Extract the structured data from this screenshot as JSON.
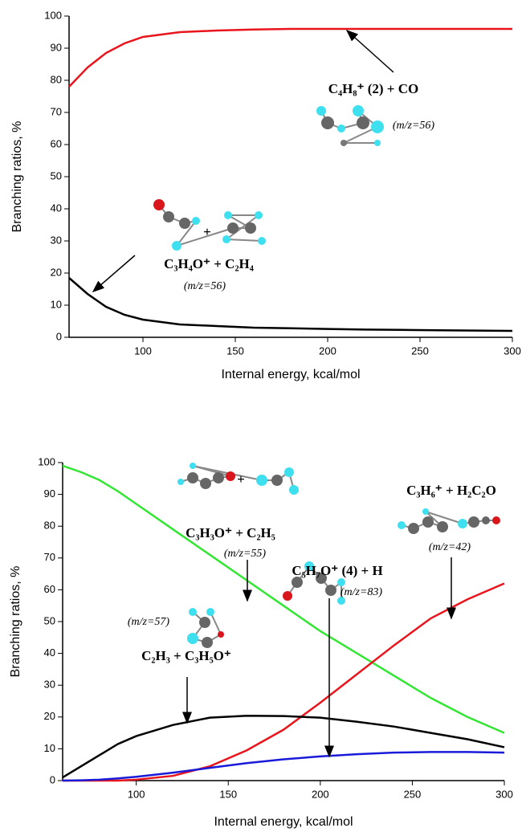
{
  "chart_data": [
    {
      "type": "line",
      "xlabel": "Internal energy, kcal/mol",
      "ylabel": "Branching ratios, %",
      "x": [
        60,
        70,
        80,
        90,
        100,
        120,
        140,
        160,
        180,
        200,
        220,
        240,
        260,
        280,
        300
      ],
      "series": [
        {
          "color": "#e8151c",
          "values": [
            78,
            84,
            88.5,
            91.5,
            93.5,
            95,
            95.5,
            95.8,
            96,
            96,
            96,
            96,
            96,
            96,
            96
          ]
        },
        {
          "color": "#000000",
          "values": [
            18.5,
            13.5,
            9.5,
            7,
            5.5,
            4,
            3.5,
            3,
            2.8,
            2.6,
            2.4,
            2.3,
            2.2,
            2.1,
            2
          ]
        }
      ],
      "xlim": [
        60,
        300
      ],
      "ylim": [
        0,
        100
      ],
      "xticks": [
        100,
        150,
        200,
        250,
        300
      ],
      "yticks": [
        0,
        10,
        20,
        30,
        40,
        50,
        60,
        70,
        80,
        90,
        100
      ],
      "annotations": [
        "C₄H₈⁺ (2) + CO",
        "(m/z=56)",
        "+",
        "C₃H₄O⁺ + C₂H₄",
        "(m/z=56)"
      ]
    },
    {
      "type": "line",
      "xlabel": "Internal energy, kcal/mol",
      "ylabel": "Branching ratios, %",
      "x": [
        60,
        70,
        80,
        90,
        100,
        120,
        140,
        160,
        180,
        200,
        220,
        240,
        260,
        280,
        300
      ],
      "series": [
        {
          "color": "#33e633",
          "values": [
            99,
            97,
            94.5,
            91,
            87,
            79,
            71,
            63,
            55,
            47,
            40,
            33,
            26,
            20,
            15
          ]
        },
        {
          "color": "#e8151c",
          "values": [
            0,
            0,
            0,
            0,
            0.3,
            1.5,
            4.5,
            9.5,
            16,
            24.5,
            33.5,
            42.5,
            51,
            57,
            62
          ]
        },
        {
          "color": "#000000",
          "values": [
            1,
            4.5,
            8,
            11.5,
            14,
            17.5,
            19.8,
            20.4,
            20.3,
            19.8,
            18.5,
            17,
            15,
            13,
            10.5
          ]
        },
        {
          "color": "#1a1ad9",
          "values": [
            0,
            0.1,
            0.3,
            0.7,
            1.2,
            2.5,
            4,
            5.5,
            6.7,
            7.6,
            8.3,
            8.8,
            9,
            9,
            8.8
          ]
        }
      ],
      "xlim": [
        60,
        300
      ],
      "ylim": [
        0,
        100
      ],
      "xticks": [
        100,
        150,
        200,
        250,
        300
      ],
      "yticks": [
        0,
        10,
        20,
        30,
        40,
        50,
        60,
        70,
        80,
        90,
        100
      ],
      "annotations": [
        "C₃H₃O⁺ + C₂H₅",
        "(m/z=55)",
        "+",
        "C₃H₆⁺ + H₂C₂O",
        "(m/z=42)",
        "C₅H₇O⁺ (4) + H",
        "(m/z=83)",
        "(m/z=57)",
        "C₂H₃ + C₃H₅O⁺"
      ]
    }
  ]
}
